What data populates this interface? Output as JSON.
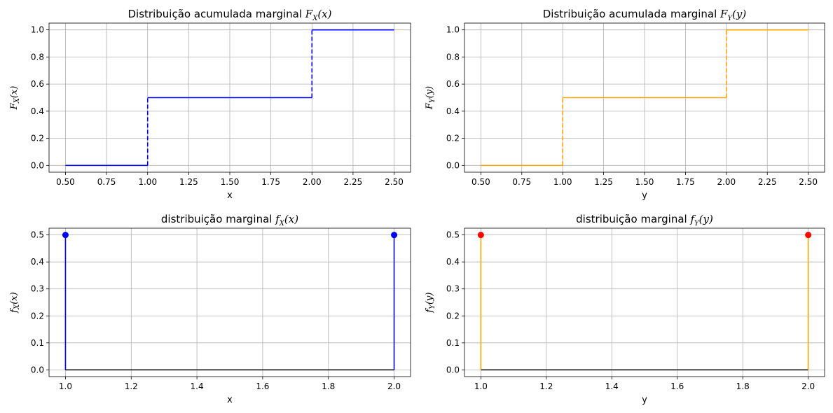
{
  "chart_data": [
    {
      "type": "line",
      "subtype": "step",
      "title_text": "Distribuição acumulada marginal ",
      "title_math": {
        "base": "F",
        "sub": "X",
        "arg": "(x)"
      },
      "xlabel": "x",
      "ylabel_math": {
        "base": "F",
        "sub": "X",
        "arg": "(x)"
      },
      "xlim": [
        0.4,
        2.6
      ],
      "ylim": [
        -0.05,
        1.05
      ],
      "xticks": [
        "0.50",
        "0.75",
        "1.00",
        "1.25",
        "1.50",
        "1.75",
        "2.00",
        "2.25",
        "2.50"
      ],
      "yticks": [
        "0.0",
        "0.2",
        "0.4",
        "0.6",
        "0.8",
        "1.0"
      ],
      "grid": true,
      "color": "#0000ff",
      "segments": [
        {
          "x": [
            0.5,
            1.0
          ],
          "y": 0
        },
        {
          "x": [
            1.0,
            2.0
          ],
          "y": 0.5
        },
        {
          "x": [
            2.0,
            2.5
          ],
          "y": 1.0
        }
      ],
      "jumps": [
        {
          "x": 1.0,
          "y": [
            0,
            0.5
          ]
        },
        {
          "x": 2.0,
          "y": [
            0.5,
            1.0
          ]
        }
      ]
    },
    {
      "type": "line",
      "subtype": "step",
      "title_text": "Distribuição acumulada marginal ",
      "title_math": {
        "base": "F",
        "sub": "Y",
        "arg": "(y)"
      },
      "xlabel": "y",
      "ylabel_math": {
        "base": "F",
        "sub": "Y",
        "arg": "(y)"
      },
      "xlim": [
        0.4,
        2.6
      ],
      "ylim": [
        -0.05,
        1.05
      ],
      "xticks": [
        "0.50",
        "0.75",
        "1.00",
        "1.25",
        "1.50",
        "1.75",
        "2.00",
        "2.25",
        "2.50"
      ],
      "yticks": [
        "0.0",
        "0.2",
        "0.4",
        "0.6",
        "0.8",
        "1.0"
      ],
      "grid": true,
      "color": "#ffa500",
      "segments": [
        {
          "x": [
            0.5,
            1.0
          ],
          "y": 0
        },
        {
          "x": [
            1.0,
            2.0
          ],
          "y": 0.5
        },
        {
          "x": [
            2.0,
            2.5
          ],
          "y": 1.0
        }
      ],
      "jumps": [
        {
          "x": 1.0,
          "y": [
            0,
            0.5
          ]
        },
        {
          "x": 2.0,
          "y": [
            0.5,
            1.0
          ]
        }
      ]
    },
    {
      "type": "scatter",
      "subtype": "stem",
      "title_text": "distribuição marginal ",
      "title_math": {
        "base": "f",
        "sub": "X",
        "arg": "(x)"
      },
      "xlabel": "x",
      "ylabel_math": {
        "base": "f",
        "sub": "X",
        "arg": "(x)"
      },
      "xlim": [
        0.95,
        2.05
      ],
      "ylim": [
        -0.025,
        0.525
      ],
      "xticks": [
        "1.0",
        "1.2",
        "1.4",
        "1.6",
        "1.8",
        "2.0"
      ],
      "yticks": [
        "0.0",
        "0.1",
        "0.2",
        "0.3",
        "0.4",
        "0.5"
      ],
      "grid": true,
      "stem_color": "#0000ff",
      "marker_color": "#0000ff",
      "baseline_color": "#000000",
      "points": [
        {
          "x": 1.0,
          "y": 0.5
        },
        {
          "x": 2.0,
          "y": 0.5
        }
      ]
    },
    {
      "type": "scatter",
      "subtype": "stem",
      "title_text": "distribuição marginal ",
      "title_math": {
        "base": "f",
        "sub": "Y",
        "arg": "(y)"
      },
      "xlabel": "y",
      "ylabel_math": {
        "base": "f",
        "sub": "Y",
        "arg": "(y)"
      },
      "xlim": [
        0.95,
        2.05
      ],
      "ylim": [
        -0.025,
        0.525
      ],
      "xticks": [
        "1.0",
        "1.2",
        "1.4",
        "1.6",
        "1.8",
        "2.0"
      ],
      "yticks": [
        "0.0",
        "0.1",
        "0.2",
        "0.3",
        "0.4",
        "0.5"
      ],
      "grid": true,
      "stem_color": "#ffa500",
      "marker_color": "#ff0000",
      "baseline_color": "#000000",
      "points": [
        {
          "x": 1.0,
          "y": 0.5
        },
        {
          "x": 2.0,
          "y": 0.5
        }
      ]
    }
  ]
}
